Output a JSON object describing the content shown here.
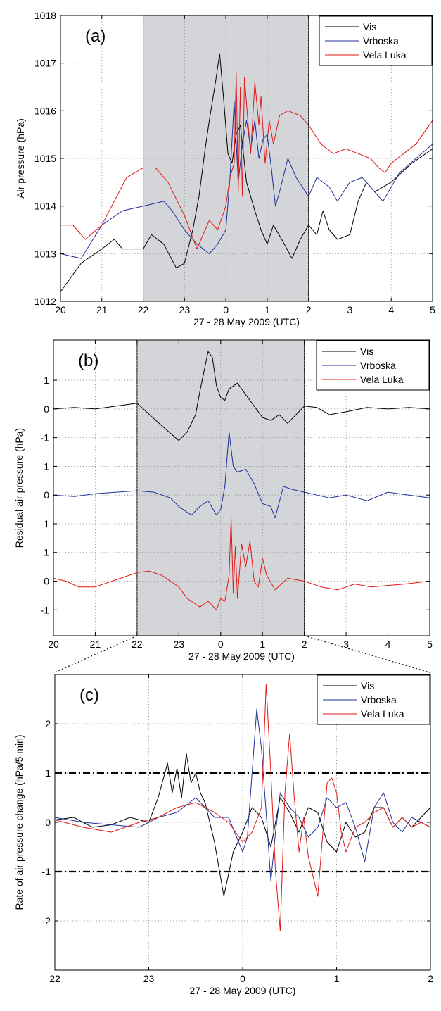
{
  "figure": {
    "panels": [
      "(a)",
      "(b)",
      "(c)"
    ],
    "x_tick_labels_full": [
      "20",
      "21",
      "22",
      "23",
      "0",
      "1",
      "2",
      "3",
      "4",
      "5"
    ],
    "x_tick_labels_zoom": [
      "22",
      "23",
      "0",
      "1",
      "2"
    ],
    "xlabel": "27 - 28 May 2009 (UTC)",
    "colors": {
      "Vis": "#000000",
      "Vrboska": "#1f2f9a",
      "Vela Luka": "#e01818",
      "shade": "#d4d5d8"
    }
  },
  "chart_data": [
    {
      "panel": "(a)",
      "type": "line",
      "xlabel": "27 - 28 May 2009 (UTC)",
      "ylabel": "Air pressure (hPa)",
      "xlim": [
        20,
        29
      ],
      "ylim": [
        1012,
        1018
      ],
      "y_ticks": [
        "1012",
        "1013",
        "1014",
        "1015",
        "1016",
        "1017",
        "1018"
      ],
      "x_tick_labels": [
        "20",
        "21",
        "22",
        "23",
        "0",
        "1",
        "2",
        "3",
        "4",
        "5"
      ],
      "shaded_interval": [
        22,
        26
      ],
      "grid": true,
      "legend": "top-right",
      "series": [
        {
          "name": "Vis",
          "color": "#000000",
          "x": [
            20.0,
            20.5,
            21.0,
            21.3,
            21.5,
            22.0,
            22.2,
            22.5,
            22.8,
            23.0,
            23.2,
            23.35,
            23.5,
            23.6,
            23.75,
            23.85,
            23.95,
            24.05,
            24.15,
            24.25,
            24.35,
            24.5,
            24.7,
            24.85,
            25.0,
            25.15,
            25.35,
            25.6,
            25.8,
            26.0,
            26.2,
            26.35,
            26.5,
            26.7,
            27.0,
            27.2,
            27.4,
            27.6,
            28.0,
            28.5,
            29.0
          ],
          "y": [
            1012.2,
            1012.8,
            1013.1,
            1013.3,
            1013.1,
            1013.1,
            1013.4,
            1013.2,
            1012.7,
            1012.8,
            1013.5,
            1014.2,
            1015.2,
            1015.8,
            1016.6,
            1017.2,
            1016.2,
            1015.1,
            1014.9,
            1015.5,
            1015.7,
            1014.5,
            1013.9,
            1013.5,
            1013.2,
            1013.6,
            1013.3,
            1012.9,
            1013.3,
            1013.6,
            1013.4,
            1013.9,
            1013.5,
            1013.3,
            1013.4,
            1014.1,
            1014.5,
            1014.3,
            1014.5,
            1014.9,
            1015.2
          ]
        },
        {
          "name": "Vrboska",
          "color": "#1f2f9a",
          "x": [
            20.0,
            20.5,
            21.0,
            21.5,
            22.0,
            22.5,
            22.7,
            23.0,
            23.3,
            23.6,
            23.8,
            24.0,
            24.1,
            24.2,
            24.3,
            24.4,
            24.5,
            24.6,
            24.7,
            24.8,
            24.9,
            25.0,
            25.1,
            25.2,
            25.3,
            25.5,
            25.7,
            26.0,
            26.2,
            26.5,
            26.7,
            27.0,
            27.3,
            27.6,
            27.8,
            28.2,
            28.6,
            29.0
          ],
          "y": [
            1013.0,
            1012.9,
            1013.6,
            1013.9,
            1014.0,
            1014.1,
            1013.9,
            1013.5,
            1013.2,
            1013.0,
            1013.2,
            1013.5,
            1014.6,
            1016.2,
            1014.5,
            1015.3,
            1015.8,
            1015.2,
            1015.8,
            1015.0,
            1015.4,
            1015.5,
            1014.8,
            1014.0,
            1014.3,
            1015.0,
            1014.6,
            1014.2,
            1014.6,
            1014.4,
            1014.1,
            1014.5,
            1014.6,
            1014.3,
            1014.1,
            1014.7,
            1015.0,
            1015.3
          ]
        },
        {
          "name": "Vela Luka",
          "color": "#e01818",
          "x": [
            20.0,
            20.3,
            20.6,
            21.0,
            21.3,
            21.6,
            22.0,
            22.3,
            22.6,
            23.0,
            23.3,
            23.6,
            23.8,
            24.0,
            24.1,
            24.2,
            24.25,
            24.3,
            24.35,
            24.4,
            24.45,
            24.55,
            24.6,
            24.7,
            24.8,
            24.85,
            24.95,
            25.05,
            25.15,
            25.3,
            25.5,
            25.8,
            26.0,
            26.3,
            26.6,
            26.9,
            27.2,
            27.5,
            27.7,
            27.85,
            28.0,
            28.3,
            28.6,
            29.0
          ],
          "y": [
            1013.6,
            1013.6,
            1013.3,
            1013.6,
            1014.1,
            1014.6,
            1014.8,
            1014.8,
            1014.5,
            1013.8,
            1013.1,
            1013.7,
            1013.5,
            1014.0,
            1014.6,
            1014.9,
            1016.8,
            1014.3,
            1016.5,
            1014.2,
            1016.7,
            1015.6,
            1015.1,
            1016.6,
            1015.7,
            1016.3,
            1014.9,
            1015.8,
            1015.3,
            1015.9,
            1016.0,
            1015.9,
            1015.7,
            1015.3,
            1015.1,
            1015.2,
            1015.1,
            1015.0,
            1014.8,
            1014.7,
            1014.9,
            1015.1,
            1015.3,
            1015.8
          ]
        }
      ]
    },
    {
      "panel": "(b)",
      "type": "line",
      "xlabel": "27 - 28 May 2009 (UTC)",
      "ylabel": "Residual air pressure (hPa)",
      "xlim": [
        20,
        29
      ],
      "y_tick_labels": [
        "1",
        "0",
        "-1"
      ],
      "stack_offsets": {
        "Vis": 0,
        "Vrboska": -3,
        "Vela Luka": -6
      },
      "x_tick_labels": [
        "20",
        "21",
        "22",
        "23",
        "0",
        "1",
        "2",
        "3",
        "4",
        "5"
      ],
      "shaded_interval": [
        22,
        26
      ],
      "grid": true,
      "legend": "top-right",
      "series": [
        {
          "name": "Vis",
          "color": "#000000",
          "x": [
            20.0,
            20.5,
            21.0,
            21.5,
            22.0,
            22.3,
            22.6,
            23.0,
            23.2,
            23.4,
            23.5,
            23.6,
            23.7,
            23.8,
            23.9,
            24.0,
            24.1,
            24.2,
            24.4,
            24.6,
            24.8,
            25.0,
            25.2,
            25.4,
            25.6,
            25.8,
            26.0,
            26.3,
            26.6,
            27.0,
            27.5,
            28.0,
            28.5,
            29.0
          ],
          "y": [
            0.0,
            0.05,
            0.0,
            0.1,
            0.2,
            -0.2,
            -0.6,
            -1.1,
            -0.8,
            -0.2,
            0.6,
            1.3,
            2.0,
            1.8,
            0.8,
            0.4,
            0.3,
            0.7,
            0.9,
            0.5,
            0.1,
            -0.3,
            -0.4,
            -0.2,
            -0.5,
            -0.2,
            0.1,
            0.05,
            -0.2,
            -0.1,
            0.05,
            0.0,
            0.05,
            0.0
          ]
        },
        {
          "name": "Vrboska",
          "color": "#1f2f9a",
          "x": [
            20.0,
            20.5,
            21.0,
            21.5,
            22.0,
            22.4,
            22.8,
            23.0,
            23.3,
            23.5,
            23.7,
            23.9,
            24.0,
            24.1,
            24.2,
            24.3,
            24.4,
            24.6,
            24.8,
            25.0,
            25.2,
            25.3,
            25.5,
            25.7,
            26.0,
            26.3,
            26.6,
            27.0,
            27.5,
            28.0,
            28.5,
            29.0
          ],
          "y": [
            0.0,
            -0.05,
            0.05,
            0.1,
            0.15,
            0.1,
            -0.1,
            -0.4,
            -0.7,
            -0.4,
            -0.2,
            -0.7,
            -0.5,
            0.3,
            2.2,
            1.0,
            0.8,
            0.9,
            0.4,
            -0.3,
            -0.4,
            -0.8,
            0.3,
            0.2,
            0.1,
            0.0,
            -0.1,
            0.0,
            -0.2,
            0.1,
            0.0,
            -0.1
          ]
        },
        {
          "name": "Vela Luka",
          "color": "#e01818",
          "x": [
            20.0,
            20.3,
            20.6,
            21.0,
            21.4,
            21.8,
            22.0,
            22.3,
            22.6,
            23.0,
            23.2,
            23.5,
            23.7,
            23.9,
            24.0,
            24.1,
            24.2,
            24.25,
            24.3,
            24.35,
            24.4,
            24.5,
            24.6,
            24.7,
            24.8,
            24.9,
            25.0,
            25.1,
            25.3,
            25.6,
            26.0,
            26.4,
            26.8,
            27.2,
            27.6,
            28.0,
            28.4,
            29.0
          ],
          "y": [
            0.1,
            0.0,
            -0.2,
            -0.2,
            0.0,
            0.2,
            0.3,
            0.35,
            0.2,
            -0.2,
            -0.6,
            -0.9,
            -0.7,
            -1.0,
            -0.6,
            -0.7,
            0.2,
            2.2,
            -0.4,
            1.2,
            -0.6,
            1.3,
            0.5,
            1.4,
            0.0,
            -0.2,
            0.8,
            0.2,
            -0.3,
            0.1,
            0.0,
            -0.2,
            -0.3,
            -0.1,
            -0.2,
            -0.15,
            -0.1,
            0.0
          ]
        }
      ]
    },
    {
      "panel": "(c)",
      "type": "line",
      "xlabel": "27 - 28 May 2009 (UTC)",
      "ylabel": "Rate of air pressure change (hPa/5 min)",
      "xlim": [
        22,
        26
      ],
      "ylim": [
        -3,
        3
      ],
      "y_ticks": [
        "2",
        "1",
        "0",
        "-1",
        "-2"
      ],
      "x_tick_labels": [
        "22",
        "23",
        "0",
        "1",
        "2"
      ],
      "threshold_lines": [
        1,
        -1
      ],
      "grid": true,
      "legend": "top-right",
      "series": [
        {
          "name": "Vis",
          "color": "#000000",
          "x": [
            22.0,
            22.2,
            22.4,
            22.6,
            22.8,
            23.0,
            23.1,
            23.2,
            23.25,
            23.3,
            23.35,
            23.4,
            23.45,
            23.5,
            23.55,
            23.6,
            23.7,
            23.8,
            23.9,
            24.0,
            24.1,
            24.2,
            24.3,
            24.4,
            24.5,
            24.6,
            24.7,
            24.8,
            24.9,
            25.0,
            25.1,
            25.2,
            25.3,
            25.4,
            25.5,
            25.6,
            25.7,
            25.8,
            25.9,
            26.0
          ],
          "y": [
            0.05,
            0.1,
            -0.1,
            -0.05,
            0.1,
            0.0,
            0.5,
            1.2,
            0.6,
            1.1,
            0.5,
            1.4,
            0.8,
            1.0,
            0.6,
            0.4,
            -0.4,
            -1.5,
            -0.6,
            -0.2,
            0.3,
            0.1,
            -0.5,
            0.5,
            0.2,
            -0.2,
            0.3,
            0.2,
            -0.4,
            -0.6,
            0.0,
            -0.3,
            -0.2,
            0.3,
            0.3,
            -0.1,
            0.1,
            -0.1,
            0.1,
            0.3
          ]
        },
        {
          "name": "Vrboska",
          "color": "#1f2f9a",
          "x": [
            22.0,
            22.3,
            22.6,
            22.9,
            23.1,
            23.3,
            23.5,
            23.7,
            23.85,
            24.0,
            24.05,
            24.1,
            24.15,
            24.2,
            24.25,
            24.3,
            24.35,
            24.4,
            24.5,
            24.6,
            24.7,
            24.8,
            24.9,
            25.0,
            25.1,
            25.2,
            25.3,
            25.4,
            25.5,
            25.6,
            25.7,
            25.8,
            25.9,
            26.0
          ],
          "y": [
            0.1,
            0.0,
            -0.05,
            -0.1,
            0.1,
            0.2,
            0.5,
            0.1,
            0.1,
            -0.6,
            -0.3,
            1.0,
            2.3,
            1.5,
            0.2,
            -1.2,
            -0.2,
            0.6,
            0.3,
            0.1,
            -0.3,
            -0.1,
            0.5,
            0.3,
            0.4,
            -0.1,
            -0.8,
            0.3,
            0.6,
            0.0,
            -0.2,
            0.1,
            0.0,
            -0.1
          ]
        },
        {
          "name": "Vela Luka",
          "color": "#e01818",
          "x": [
            22.0,
            22.3,
            22.6,
            22.9,
            23.1,
            23.3,
            23.5,
            23.7,
            23.85,
            24.0,
            24.1,
            24.2,
            24.25,
            24.3,
            24.35,
            24.4,
            24.45,
            24.5,
            24.55,
            24.6,
            24.65,
            24.7,
            24.8,
            24.85,
            24.9,
            24.95,
            25.0,
            25.05,
            25.1,
            25.2,
            25.3,
            25.4,
            25.5,
            25.6,
            25.7,
            25.8,
            25.9,
            26.0
          ],
          "y": [
            0.05,
            -0.1,
            -0.2,
            0.0,
            0.1,
            0.3,
            0.4,
            0.2,
            0.0,
            -0.4,
            -0.2,
            0.3,
            2.8,
            1.0,
            -1.0,
            -2.2,
            0.6,
            1.8,
            0.5,
            -0.6,
            0.1,
            -0.7,
            -1.5,
            -0.3,
            0.8,
            0.9,
            0.6,
            -0.2,
            -0.6,
            -0.1,
            0.0,
            0.2,
            0.3,
            -0.1,
            0.1,
            -0.1,
            0.0,
            -0.1
          ]
        }
      ]
    }
  ]
}
